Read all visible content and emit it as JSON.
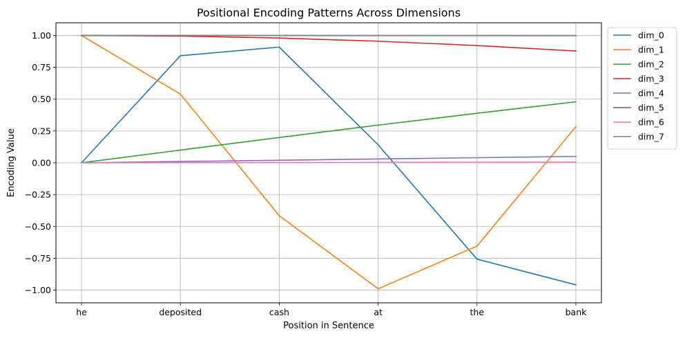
{
  "chart_data": {
    "type": "line",
    "title": "Positional Encoding Patterns Across Dimensions",
    "xlabel": "Position in Sentence",
    "ylabel": "Encoding Value",
    "categories": [
      "he",
      "deposited",
      "cash",
      "at",
      "the",
      "bank"
    ],
    "ylim": [
      -1.1,
      1.1
    ],
    "yticks": [
      1.0,
      0.75,
      0.5,
      0.25,
      0.0,
      -0.25,
      -0.5,
      -0.75,
      -1.0
    ],
    "ytick_labels": [
      "1.00",
      "0.75",
      "0.50",
      "0.25",
      "0.00",
      "−0.25",
      "−0.50",
      "−0.75",
      "−1.00"
    ],
    "grid": true,
    "legend_position": "outside-top-right",
    "series": [
      {
        "name": "dim_0",
        "color": "#1f77b4",
        "values": [
          0.0,
          0.841,
          0.909,
          0.141,
          -0.757,
          -0.959
        ]
      },
      {
        "name": "dim_1",
        "color": "#ff7f0e",
        "values": [
          1.0,
          0.54,
          -0.416,
          -0.99,
          -0.654,
          0.284
        ]
      },
      {
        "name": "dim_2",
        "color": "#2ca02c",
        "values": [
          0.0,
          0.0998,
          0.199,
          0.296,
          0.389,
          0.479
        ]
      },
      {
        "name": "dim_3",
        "color": "#d62728",
        "values": [
          1.0,
          0.995,
          0.98,
          0.955,
          0.921,
          0.878
        ]
      },
      {
        "name": "dim_4",
        "color": "#9467bd",
        "values": [
          0.0,
          0.01,
          0.02,
          0.03,
          0.04,
          0.05
        ]
      },
      {
        "name": "dim_5",
        "color": "#8c564b",
        "values": [
          1.0,
          1.0,
          0.9998,
          0.9996,
          0.9992,
          0.9988
        ]
      },
      {
        "name": "dim_6",
        "color": "#e377c2",
        "values": [
          0.0,
          0.001,
          0.002,
          0.003,
          0.004,
          0.005
        ]
      },
      {
        "name": "dim_7",
        "color": "#7f7f7f",
        "values": [
          1.0,
          1.0,
          1.0,
          1.0,
          1.0,
          1.0
        ]
      }
    ]
  }
}
